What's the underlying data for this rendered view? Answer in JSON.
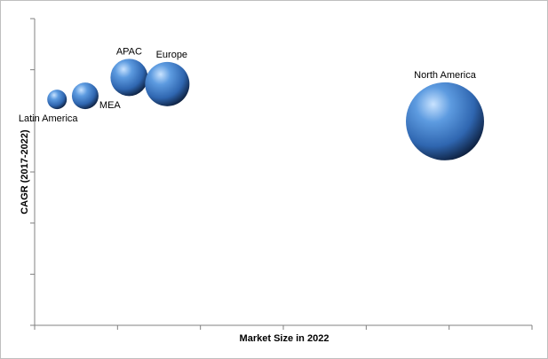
{
  "chart_data": {
    "type": "bubble",
    "title": "",
    "xlabel": "Market Size in 2022",
    "ylabel": "CAGR (2017-2022)",
    "xlim": [
      0,
      6
    ],
    "ylim": [
      0,
      6
    ],
    "x_ticks": 6,
    "y_ticks": 6,
    "grid": false,
    "legend": "none",
    "bubble_color": "#4f81bd",
    "points": [
      {
        "label": "Latin America",
        "x": 0.27,
        "y": 4.42,
        "size": 11
      },
      {
        "label": "MEA",
        "x": 0.61,
        "y": 4.49,
        "size": 15
      },
      {
        "label": "APAC",
        "x": 1.14,
        "y": 4.85,
        "size": 21
      },
      {
        "label": "Europe",
        "x": 1.6,
        "y": 4.72,
        "size": 25
      },
      {
        "label": "North America",
        "x": 4.95,
        "y": 3.99,
        "size": 44
      }
    ]
  }
}
